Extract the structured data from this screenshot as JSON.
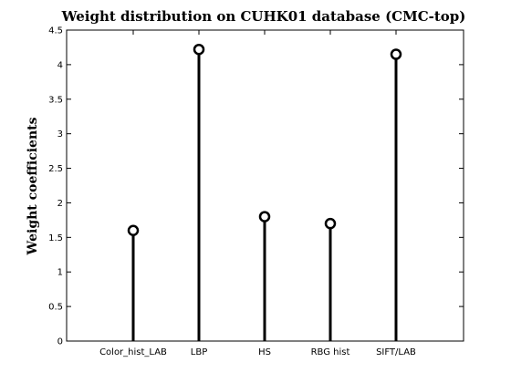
{
  "chart_data": {
    "type": "stem",
    "title": "Weight distribution on CUHK01 database (CMC-top)",
    "xlabel": "",
    "ylabel": "Weight coefficients",
    "categories": [
      "Color_hist_LAB",
      "LBP",
      "HS",
      "RBG hist",
      "SIFT/LAB"
    ],
    "values": [
      1.6,
      4.22,
      1.8,
      1.7,
      4.15
    ],
    "ylim": [
      0,
      4.5
    ],
    "yticks": [
      0,
      0.5,
      1,
      1.5,
      2,
      2.5,
      3,
      3.5,
      4,
      4.5
    ],
    "ytick_labels": [
      "0",
      "0.5",
      "1",
      "1.5",
      "2",
      "2.5",
      "3",
      "3.5",
      "4",
      "4.5"
    ],
    "grid": false,
    "marker": "circle",
    "color": "#000000"
  }
}
